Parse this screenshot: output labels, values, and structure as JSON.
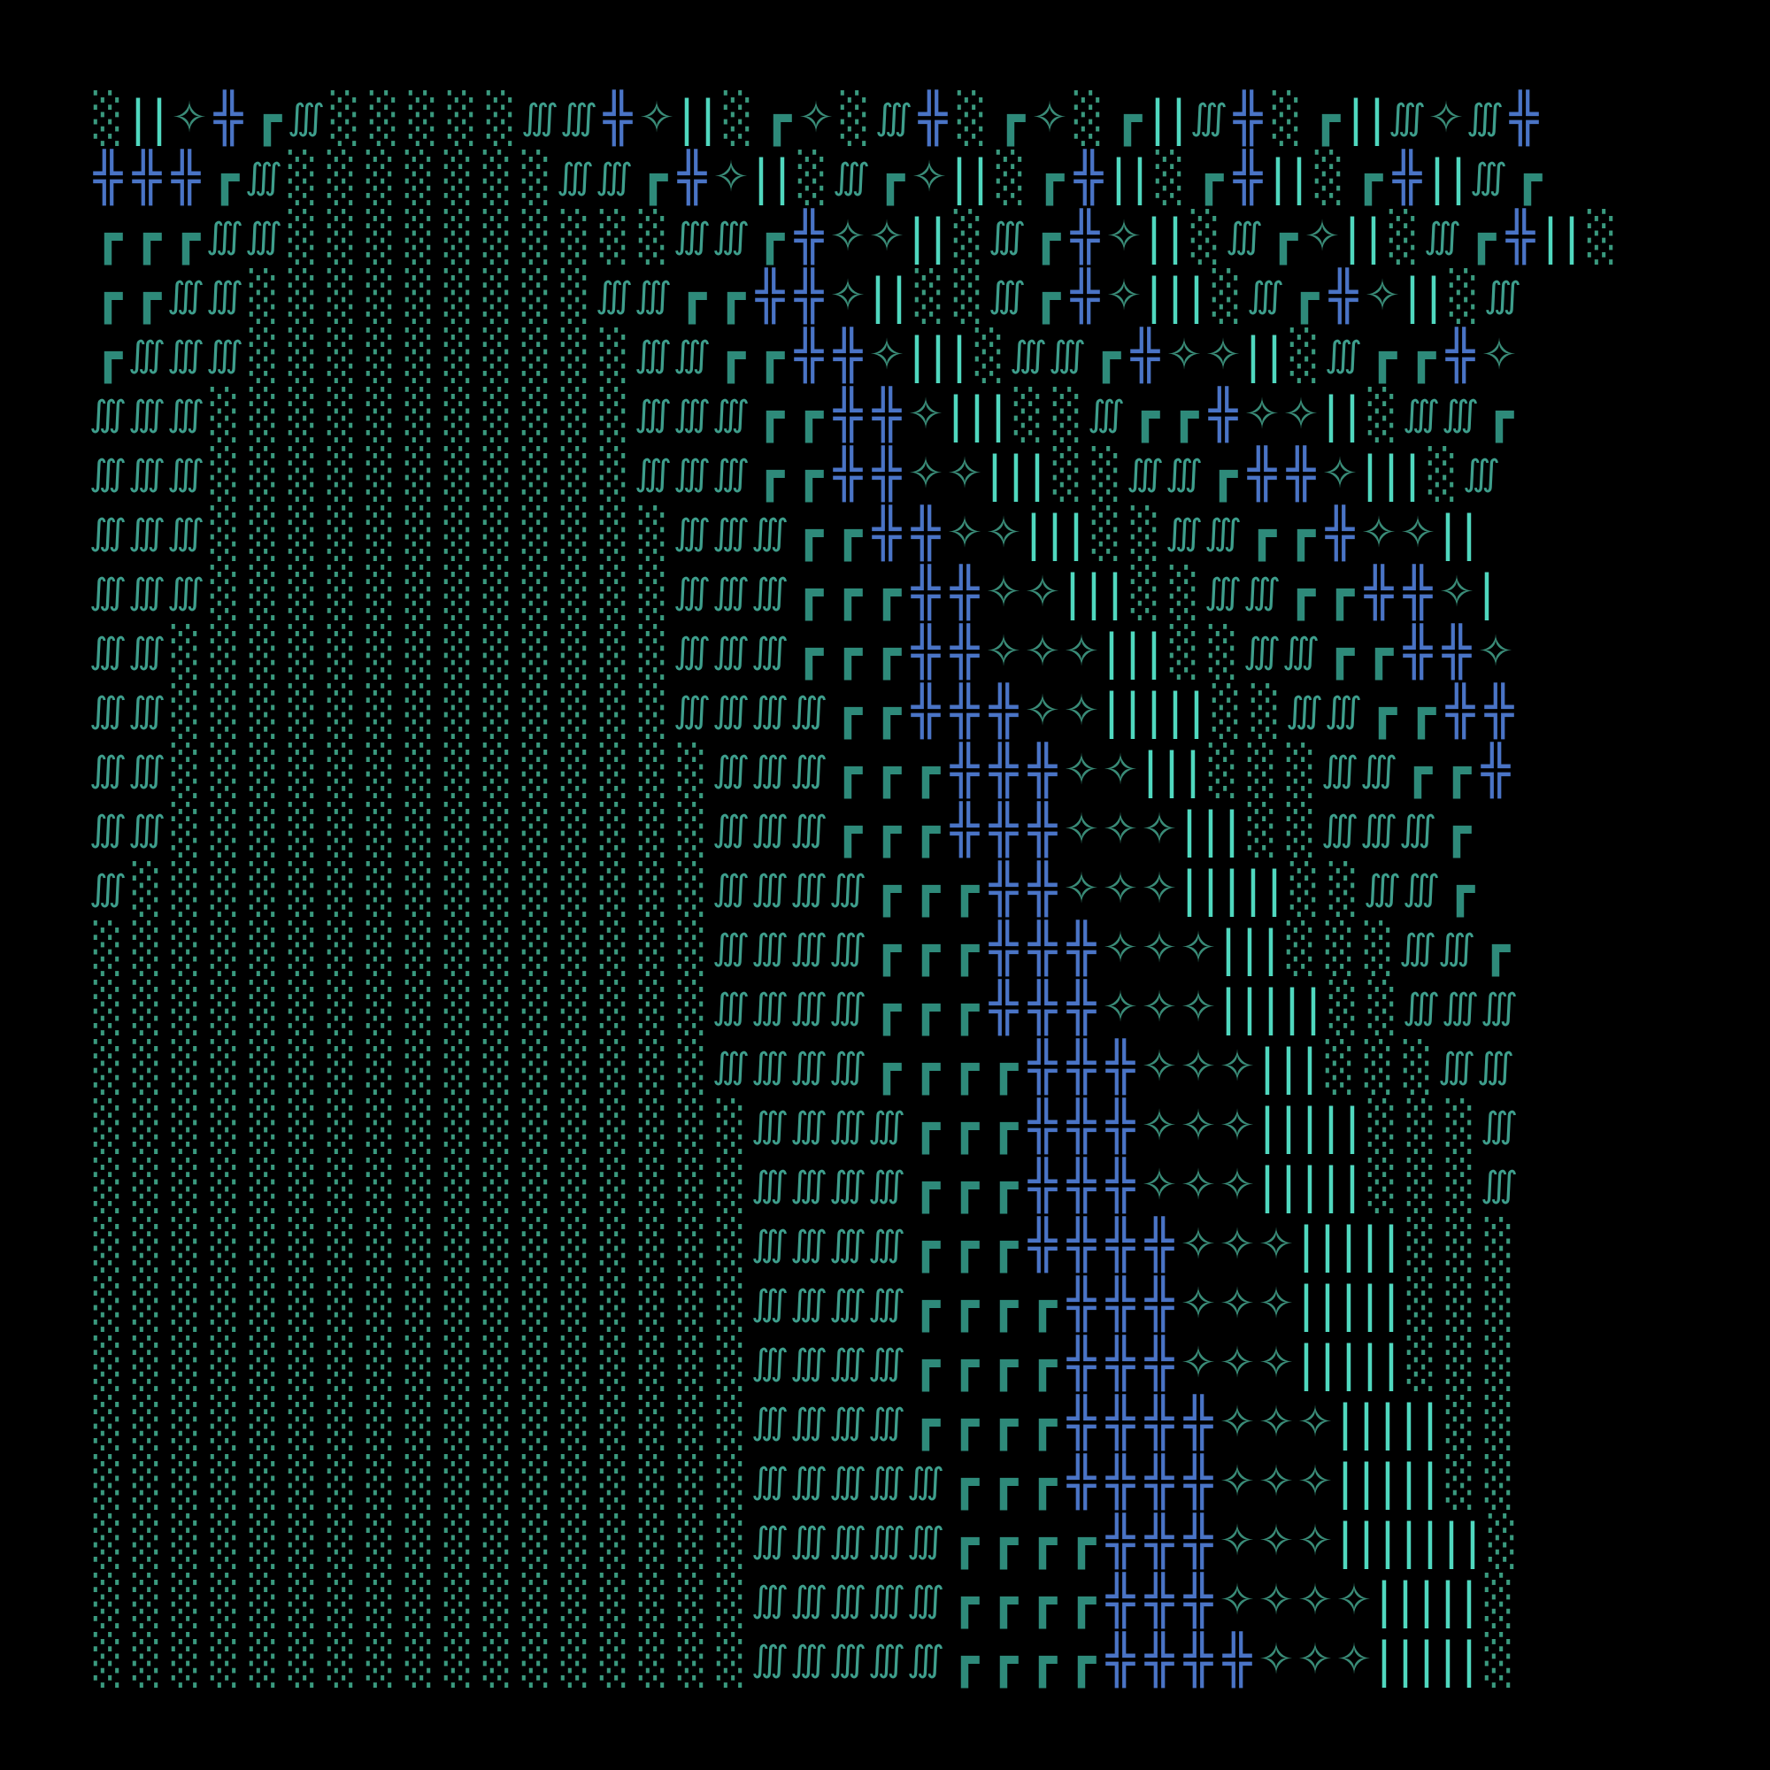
{
  "palette": {
    "background": "#000000",
    "shade": "#3a9a7f",
    "integral": "#3e9e8c",
    "box": "#2e8a7a",
    "cross": "#4a74c6",
    "star": "#3a8c78",
    "bar": "#50d8bf"
  },
  "grid": {
    "rows": [
      "░||✧╬┏∭░░░░░∭∭╬✧||░┏✧░∭╬░┏✧░┏||∭╬░┏||∭✧∭╬",
      "╬╬╬┏∭░░░░░░░∭∭┏╬✧||░∭┏✧||░┏╬||░┏╬||░┏╬||∭┏",
      "┏┏┏∭∭░░░░░░░░░░∭∭┏╬✧✧||░∭┏╬✧||░∭┏✧||░∭┏╬||░",
      "┏┏∭∭░░░░░░░░░∭∭┏┏╬╬✧||░░∭┏╬✧|||░∭┏╬✧||░∭",
      "┏∭∭∭░░░░░░░░░░∭∭┏┏╬╬✧|||░∭∭┏╬✧✧||░∭┏┏╬✧",
      "∭∭∭░░░░░░░░░░░∭∭∭┏┏╬╬✧|||░░∭┏┏╬✧✧||░∭∭┏",
      "∭∭∭░░░░░░░░░░░∭∭∭┏┏╬╬✧✧|||░░∭∭┏╬╬✧|||░∭",
      "∭∭∭░░░░░░░░░░░░∭∭∭┏┏╬╬✧✧|||░░∭∭┏┏╬✧✧||",
      "∭∭∭░░░░░░░░░░░░∭∭∭┏┏┏╬╬✧✧|||░░∭∭┏┏╬╬✧|",
      "∭∭░░░░░░░░░░░░░∭∭∭┏┏┏╬╬✧✧✧|||░░∭∭┏┏╬╬✧",
      "∭∭░░░░░░░░░░░░░∭∭∭∭┏┏╬╬╬✧✧|||||░░∭∭┏┏╬╬",
      "∭∭░░░░░░░░░░░░░░∭∭∭┏┏┏╬╬╬✧✧|||░░░∭∭┏┏╬",
      "∭∭░░░░░░░░░░░░░░∭∭∭┏┏┏╬╬╬✧✧✧|||░░∭∭∭┏",
      "∭░░░░░░░░░░░░░░░∭∭∭∭┏┏┏╬╬✧✧✧|||||░░∭∭┏",
      "░░░░░░░░░░░░░░░░∭∭∭∭┏┏┏╬╬╬✧✧✧|||░░░∭∭┏",
      "░░░░░░░░░░░░░░░░∭∭∭∭┏┏┏╬╬╬✧✧✧|||||░░∭∭∭",
      "░░░░░░░░░░░░░░░░∭∭∭∭┏┏┏┏╬╬╬✧✧✧|||░░░∭∭",
      "░░░░░░░░░░░░░░░░░∭∭∭∭┏┏┏╬╬╬✧✧✧|||||░░░∭",
      "░░░░░░░░░░░░░░░░░∭∭∭∭┏┏┏╬╬╬✧✧✧|||||░░░∭",
      "░░░░░░░░░░░░░░░░░∭∭∭∭┏┏┏╬╬╬╬✧✧✧|||||░░░",
      "░░░░░░░░░░░░░░░░░∭∭∭∭┏┏┏┏╬╬╬✧✧✧|||||░░░",
      "░░░░░░░░░░░░░░░░░∭∭∭∭┏┏┏┏╬╬╬✧✧✧|||||░░░",
      "░░░░░░░░░░░░░░░░░∭∭∭∭┏┏┏┏╬╬╬╬✧✧✧|||||░░",
      "░░░░░░░░░░░░░░░░░∭∭∭∭∭┏┏┏╬╬╬╬✧✧✧|||||░░",
      "░░░░░░░░░░░░░░░░░∭∭∭∭∭┏┏┏┏╬╬╬✧✧✧|||||||░",
      "░░░░░░░░░░░░░░░░░∭∭∭∭∭┏┏┏┏╬╬╬✧✧✧✧|||||░",
      "░░░░░░░░░░░░░░░░░∭∭∭∭∭┏┏┏┏╬╬╬╬✧✧✧|||||░"
    ]
  }
}
